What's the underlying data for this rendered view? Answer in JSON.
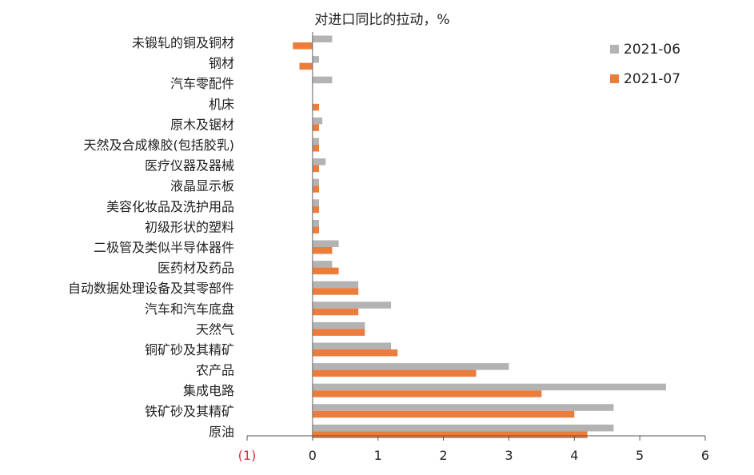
{
  "chart_data": {
    "type": "bar",
    "orientation": "horizontal",
    "title": "对进口同比的拉动，%",
    "categories": [
      "未锻轧的铜及铜材",
      "钢材",
      "汽车零配件",
      "机床",
      "原木及锯材",
      "天然及合成橡胶(包括胶乳)",
      "医疗仪器及器械",
      "液晶显示板",
      "美容化妆品及洗护用品",
      "初级形状的塑料",
      "二极管及类似半导体器件",
      "医药材及药品",
      "自动数据处理设备及其零部件",
      "汽车和汽车底盘",
      "天然气",
      "铜矿砂及其精矿",
      "农产品",
      "集成电路",
      "铁矿砂及其精矿",
      "原油"
    ],
    "series": [
      {
        "name": "2021-06",
        "color": "#b3b3b3",
        "values": [
          0.3,
          0.1,
          0.3,
          0.0,
          0.15,
          0.1,
          0.2,
          0.1,
          0.1,
          0.1,
          0.4,
          0.3,
          0.7,
          1.2,
          0.8,
          1.2,
          3.0,
          5.4,
          4.6,
          4.6
        ]
      },
      {
        "name": "2021-07",
        "color": "#ec7c3b",
        "values": [
          -0.3,
          -0.2,
          0.0,
          0.1,
          0.1,
          0.1,
          0.1,
          0.1,
          0.1,
          0.1,
          0.3,
          0.4,
          0.7,
          0.7,
          0.8,
          1.3,
          2.5,
          3.5,
          4.0,
          4.2
        ]
      }
    ],
    "xlim": [
      -1,
      6
    ],
    "x_ticks": [
      -1,
      0,
      1,
      2,
      3,
      4,
      5,
      6
    ],
    "x_tick_labels": [
      "(1)",
      "0",
      "1",
      "2",
      "3",
      "4",
      "5",
      "6"
    ],
    "negative_tick_color": "#e03030",
    "legend_position": "top-right",
    "grid": false
  }
}
